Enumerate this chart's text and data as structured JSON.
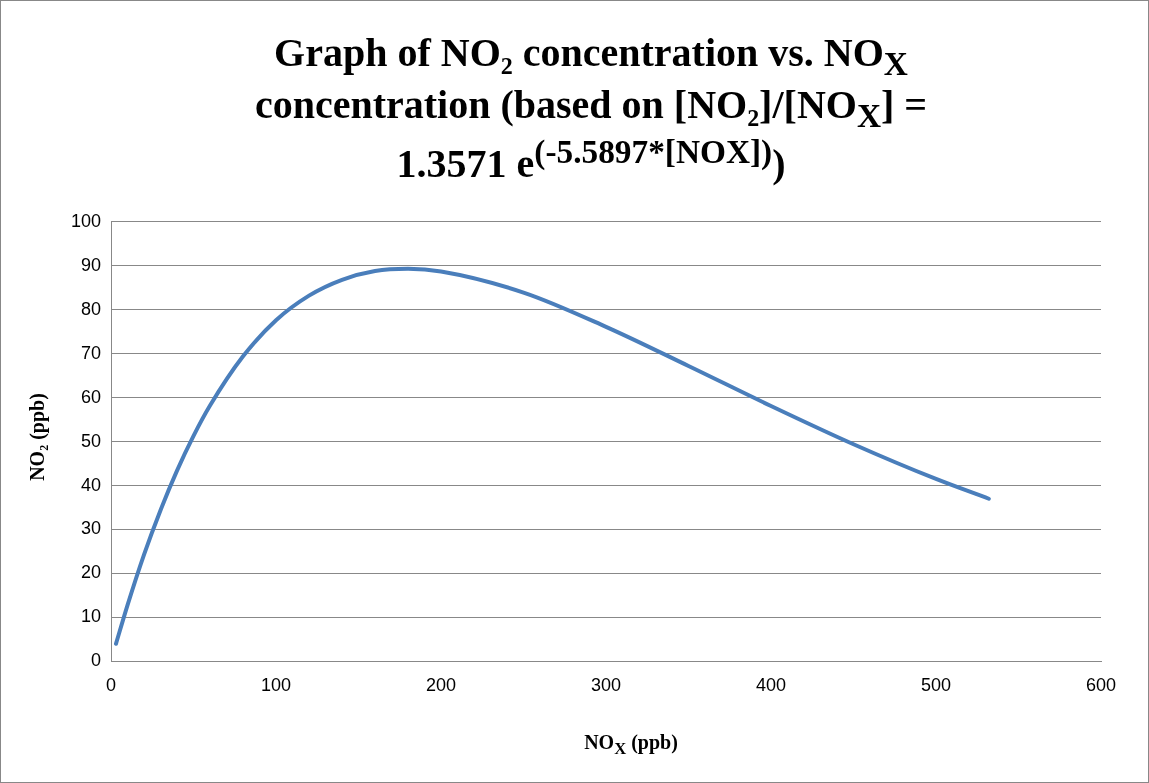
{
  "chart_data": {
    "type": "line",
    "title": "Graph of NO₂ concentration vs. NO$_{X}$ concentration (based on [NO₂]/[NO$_{X}$] = 1.3571 e$^{(-5.5897*[NOX])}$)",
    "xlabel": "NO$_{X}$ (ppb)",
    "ylabel": "NO₂ (ppb)",
    "x": [
      3,
      10,
      20,
      30,
      40,
      50,
      60,
      80,
      100,
      120,
      140,
      160,
      180,
      200,
      250,
      300,
      350,
      400,
      450,
      500,
      532
    ],
    "series": [
      {
        "color": "#4a7ebb",
        "values": [
          4.0,
          12.8,
          24.3,
          34.4,
          43.4,
          51.3,
          58.2,
          69.4,
          77.6,
          83.2,
          86.8,
          88.8,
          89.3,
          88.7,
          83.9,
          76.1,
          67.2,
          58.1,
          49.4,
          41.5,
          37.0
        ]
      }
    ],
    "xlim": [
      0,
      600
    ],
    "xticks": [
      0,
      100,
      200,
      300,
      400,
      500,
      600
    ],
    "ylim": [
      0,
      100
    ],
    "yticks": [
      0,
      10,
      20,
      30,
      40,
      50,
      60,
      70,
      80,
      90,
      100
    ],
    "grid": "y",
    "legend": false,
    "marker": "none",
    "line_style": "solid"
  }
}
